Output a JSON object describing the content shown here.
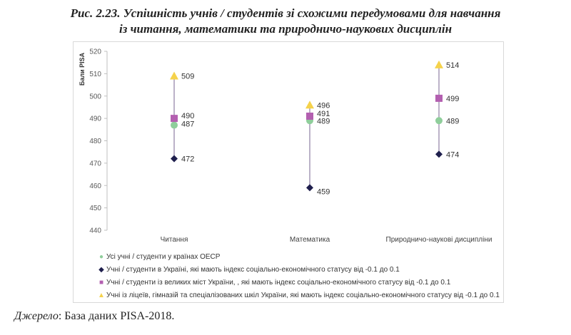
{
  "title_line1": "Рис. 2.23. Успішність учнів / студентів зі схожими передумовами для навчання",
  "title_line2": "із читання, математики та природничо-наукових дисциплін",
  "source": {
    "label": "Джерело",
    "text": ": База даних PISA-2018."
  },
  "chart_data": {
    "type": "scatter",
    "ylabel": "Бали PISA",
    "ylim": [
      440,
      520
    ],
    "yticks": [
      440,
      450,
      460,
      470,
      480,
      490,
      500,
      510,
      520
    ],
    "grid": false,
    "legend_position": "bottom",
    "categories": [
      "Читання",
      "Математика",
      "Природничо-наукові дисципліни"
    ],
    "series": [
      {
        "name": "Усі учні / студенти у країнах ОЕСР",
        "marker": "circle",
        "color": "#8fce9b",
        "values": [
          487,
          489,
          489
        ]
      },
      {
        "name": "Учні / студенти в Україні, які мають індекс соціально-економічного статусу від -0.1 до 0.1",
        "marker": "diamond",
        "color": "#1f1f4d",
        "values": [
          472,
          459,
          474
        ]
      },
      {
        "name": "Учні / студенти із великих міст України, , які мають індекс соціально-економічного статусу від -0.1 до 0.1",
        "marker": "square",
        "color": "#b35fb0",
        "values": [
          490,
          491,
          499
        ]
      },
      {
        "name": "Учні із ліцеїв, гімназій та спеціалізованих шкіл України, які мають індекс соціально-економічного статусу  від -0.1 до 0.1",
        "marker": "triangle",
        "color": "#f5d24b",
        "values": [
          509,
          496,
          514
        ]
      }
    ],
    "range_line_color": "#8e7fa3"
  }
}
